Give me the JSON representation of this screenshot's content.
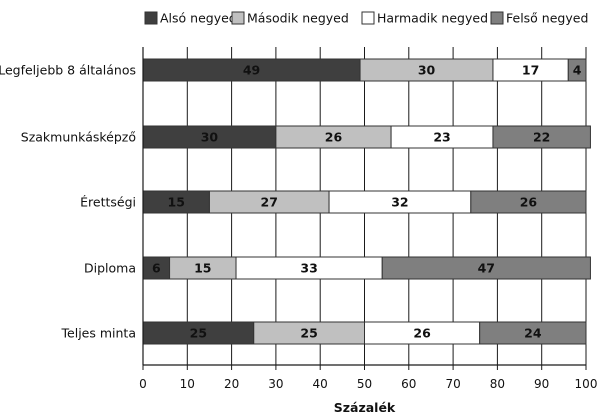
{
  "chart_data": {
    "type": "bar",
    "orientation": "horizontal",
    "stacked": true,
    "categories": [
      "Legfeljebb 8 általános",
      "Szakmunkásképző",
      "Érettségi",
      "Diploma",
      "Teljes minta"
    ],
    "series": [
      {
        "name": "Alsó negyed",
        "values": [
          49,
          30,
          15,
          6,
          25
        ],
        "color": "#3f3f3f",
        "label_color": "#111111"
      },
      {
        "name": "Második negyed",
        "values": [
          30,
          26,
          27,
          15,
          25
        ],
        "color": "#c0c0c0",
        "label_color": "#111111"
      },
      {
        "name": "Harmadik negyed",
        "values": [
          17,
          23,
          32,
          33,
          26
        ],
        "color": "#ffffff",
        "label_color": "#111111"
      },
      {
        "name": "Felső negyed",
        "values": [
          4,
          22,
          26,
          47,
          24
        ],
        "color": "#7f7f7f",
        "label_color": "#111111"
      }
    ],
    "xlabel": "Százalék",
    "ylabel": "",
    "xlim": [
      0,
      100
    ],
    "xticks": [
      0,
      10,
      20,
      30,
      40,
      50,
      60,
      70,
      80,
      90,
      100
    ],
    "grid": true,
    "legend_position": "top"
  }
}
